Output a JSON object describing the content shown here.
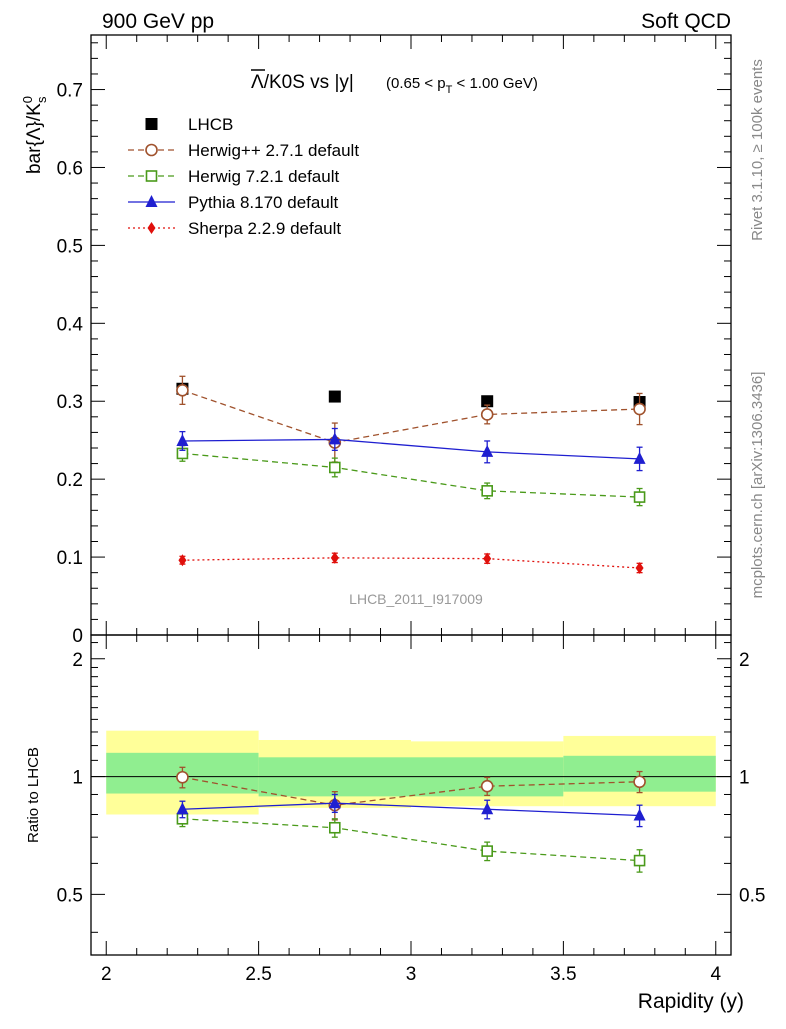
{
  "header": {
    "left": "900 GeV pp",
    "right": "Soft QCD"
  },
  "side_labels": {
    "rivet": "Rivet 3.1.10, ≥ 100k events",
    "mcplots": "mcplots.cern.ch [arXiv:1306.3436]"
  },
  "chart_data": [
    {
      "panel": "main",
      "type": "line",
      "title_main": "Λ/K0S vs |y|",
      "title_overbar": "Λ",
      "title_rest": "/K0S vs |y|",
      "title_cut": "(0.65 < p_T < 1.00 GeV)",
      "title_cut_prefix": "(0.65 < p",
      "title_cut_sub": "T",
      "title_cut_suffix": " < 1.00 GeV)",
      "ylabel": "bar{Λ}/K0s",
      "ylabel_main": "bar{Λ}/K",
      "ylabel_sup": "0",
      "ylabel_sub": "s",
      "watermark": "LHCB_2011_I917009",
      "xlim": [
        1.95,
        4.05
      ],
      "ylim": [
        0,
        0.77
      ],
      "yticks": [
        0,
        0.1,
        0.2,
        0.3,
        0.4,
        0.5,
        0.6,
        0.7
      ],
      "ytick_labels": [
        "0",
        "0.1",
        "0.2",
        "0.3",
        "0.4",
        "0.5",
        "0.6",
        "0.7"
      ],
      "x": [
        2.25,
        2.75,
        3.25,
        3.75
      ],
      "series": [
        {
          "name": "LHCB",
          "style": "data",
          "color": "#000000",
          "marker": "square-filled",
          "values": [
            0.316,
            0.306,
            0.3,
            0.299
          ],
          "errors": [
            0.005,
            0.005,
            0.005,
            0.005
          ]
        },
        {
          "name": "Herwig++ 2.7.1 default",
          "style": "dashed",
          "color": "#a0522d",
          "marker": "circle-open",
          "values": [
            0.314,
            0.247,
            0.283,
            0.29
          ],
          "errors": [
            0.018,
            0.025,
            0.012,
            0.02
          ]
        },
        {
          "name": "Herwig 7.2.1 default",
          "style": "dashed",
          "color": "#4a9a1a",
          "marker": "square-open",
          "values": [
            0.233,
            0.215,
            0.185,
            0.177
          ],
          "errors": [
            0.01,
            0.012,
            0.01,
            0.011
          ]
        },
        {
          "name": "Pythia 8.170 default",
          "style": "solid",
          "color": "#1f1fd0",
          "marker": "triangle-filled",
          "values": [
            0.249,
            0.251,
            0.235,
            0.226
          ],
          "errors": [
            0.012,
            0.014,
            0.014,
            0.015
          ]
        },
        {
          "name": "Sherpa 2.2.9 default",
          "style": "dotted",
          "color": "#e0100c",
          "marker": "diamond-filled",
          "values": [
            0.096,
            0.099,
            0.098,
            0.086
          ],
          "errors": [
            0.005,
            0.006,
            0.006,
            0.006
          ]
        }
      ]
    },
    {
      "panel": "ratio",
      "type": "line",
      "ylabel": "Ratio to LHCB",
      "xlabel": "Rapidity (y)",
      "xlim": [
        1.95,
        4.05
      ],
      "ylim": [
        0.35,
        2.3
      ],
      "yscale": "log",
      "xticks": [
        2,
        2.5,
        3,
        3.5,
        4
      ],
      "xtick_labels": [
        "2",
        "2.5",
        "3",
        "3.5",
        "4"
      ],
      "yticks": [
        0.5,
        1,
        2
      ],
      "ytick_labels": [
        "0.5",
        "1",
        "2"
      ],
      "bands": [
        {
          "x0": 2.0,
          "x1": 2.5,
          "inner": [
            0.905,
            1.15
          ],
          "outer": [
            0.8,
            1.31
          ]
        },
        {
          "x0": 2.5,
          "x1": 3.0,
          "inner": [
            0.89,
            1.12
          ],
          "outer": [
            0.832,
            1.24
          ]
        },
        {
          "x0": 3.0,
          "x1": 3.5,
          "inner": [
            0.89,
            1.12
          ],
          "outer": [
            0.84,
            1.23
          ]
        },
        {
          "x0": 3.5,
          "x1": 4.0,
          "inner": [
            0.915,
            1.13
          ],
          "outer": [
            0.84,
            1.27
          ]
        }
      ],
      "band_colors": {
        "inner": "#90ee90",
        "outer": "#ffff99"
      },
      "x": [
        2.25,
        2.75,
        3.25,
        3.75
      ],
      "series": [
        {
          "name": "Herwig++ 2.7.1 default",
          "style": "dashed",
          "color": "#a0522d",
          "marker": "circle-open",
          "values": [
            0.996,
            0.845,
            0.945,
            0.97
          ],
          "errors": [
            0.06,
            0.07,
            0.05,
            0.06
          ]
        },
        {
          "name": "Herwig 7.2.1 default",
          "style": "dashed",
          "color": "#4a9a1a",
          "marker": "square-open",
          "values": [
            0.78,
            0.74,
            0.645,
            0.61
          ],
          "errors": [
            0.035,
            0.04,
            0.035,
            0.04
          ]
        },
        {
          "name": "Pythia 8.170 default",
          "style": "solid",
          "color": "#1f1fd0",
          "marker": "triangle-filled",
          "values": [
            0.825,
            0.855,
            0.825,
            0.795
          ],
          "errors": [
            0.04,
            0.045,
            0.045,
            0.05
          ]
        }
      ]
    }
  ]
}
